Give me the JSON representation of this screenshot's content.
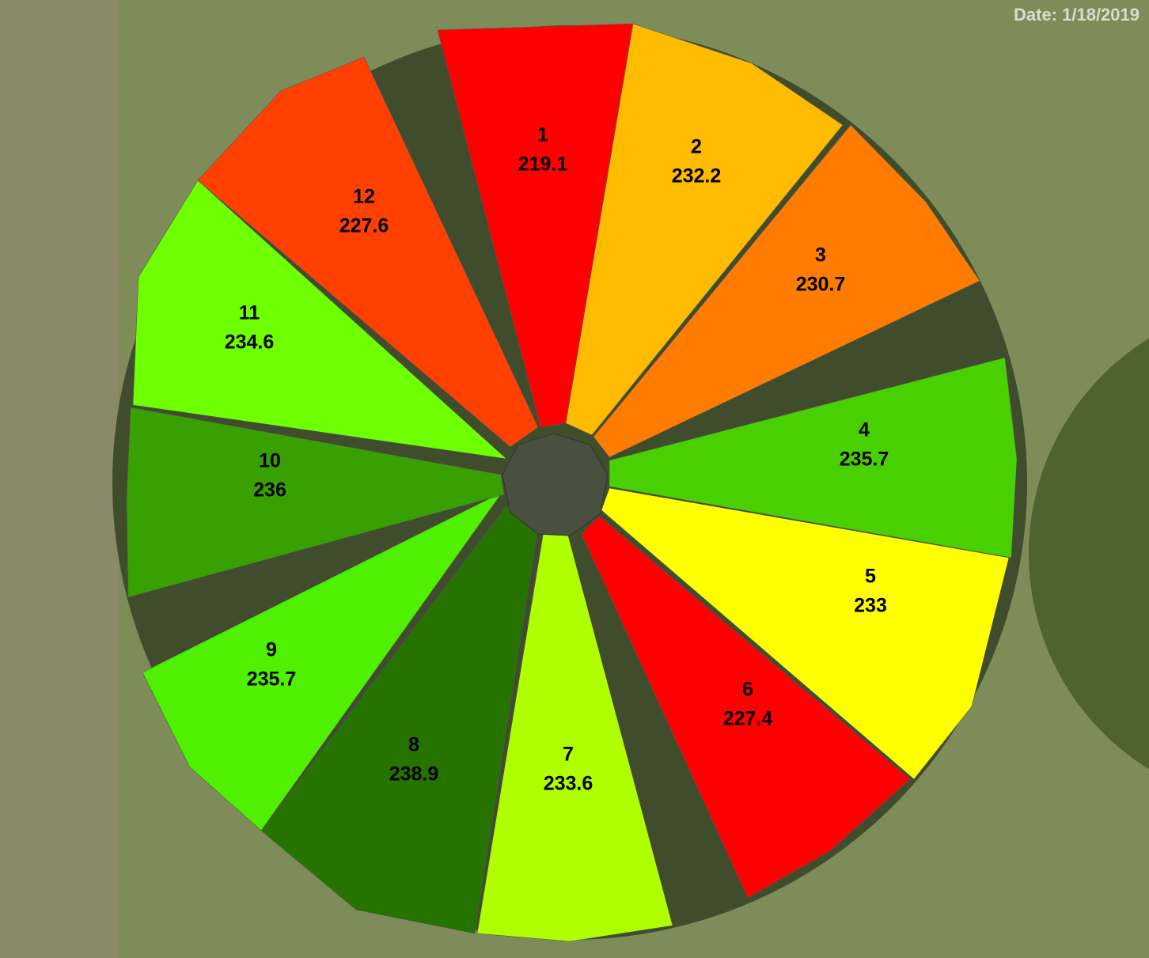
{
  "date": "Date: 1/18/2019",
  "zones": [
    {
      "label": "1",
      "value": 219.1,
      "color": "#ff0000"
    },
    {
      "label": "2",
      "value": 232.2,
      "color": "#ffbb00"
    },
    {
      "label": "3",
      "value": 230.7,
      "color": "#ff7c00"
    },
    {
      "label": "4",
      "value": 235.7,
      "color": "#48d000"
    },
    {
      "label": "5",
      "value": 233,
      "color": "#ffff00"
    },
    {
      "label": "6",
      "value": 227.4,
      "color": "#ff0000"
    },
    {
      "label": "7",
      "value": 233.6,
      "color": "#afff00"
    },
    {
      "label": "8",
      "value": 238.9,
      "color": "#267300"
    },
    {
      "label": "9",
      "value": 235.7,
      "color": "#4ff000"
    },
    {
      "label": "10",
      "value": 236,
      "color": "#38a000"
    },
    {
      "label": "11",
      "value": 234.6,
      "color": "#6eff00"
    },
    {
      "label": "12",
      "value": 227.6,
      "color": "#ff4000"
    }
  ]
}
